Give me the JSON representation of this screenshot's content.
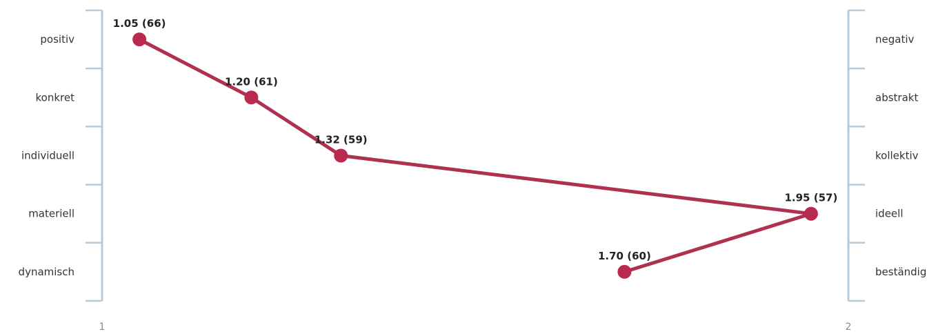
{
  "chart_data": {
    "type": "line",
    "xlim": [
      1,
      2
    ],
    "x_ticks": [
      "1",
      "2"
    ],
    "left_labels": [
      "positiv",
      "konkret",
      "individuell",
      "materiell",
      "dynamisch"
    ],
    "right_labels": [
      "negativ",
      "abstrakt",
      "kollektiv",
      "ideell",
      "beständig"
    ],
    "points": [
      {
        "value": 1.05,
        "count": 66,
        "label": "1.05 (66)"
      },
      {
        "value": 1.2,
        "count": 61,
        "label": "1.20 (61)"
      },
      {
        "value": 1.32,
        "count": 59,
        "label": "1.32 (59)"
      },
      {
        "value": 1.95,
        "count": 57,
        "label": "1.95 (57)"
      },
      {
        "value": 1.7,
        "count": 60,
        "label": "1.70 (60)"
      }
    ],
    "colors": {
      "line": "#b0304f",
      "marker": "#b82a4e",
      "axis": "#b7cad6"
    }
  }
}
